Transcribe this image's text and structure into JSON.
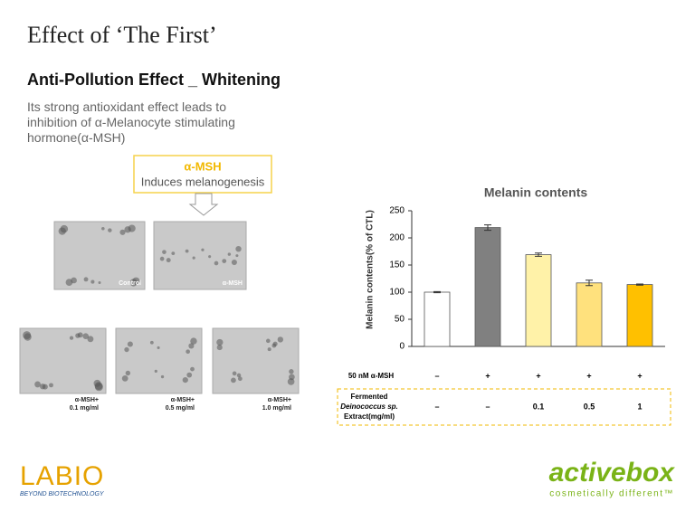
{
  "header": {
    "title": "Effect of ‘The First’",
    "subtitle": "Anti-Pollution Effect _ Whitening"
  },
  "description": [
    "Its strong antioxidant effect leads to",
    "inhibition of α-Melanocyte stimulating",
    "hormone(α-MSH)"
  ],
  "callout": {
    "title": "α-MSH",
    "text": "Induces melanogenesis"
  },
  "images": [
    {
      "label": [
        "Control"
      ]
    },
    {
      "label": [
        "α-MSH"
      ]
    },
    {
      "label": [
        "α-MSH+",
        "0.1 mg/ml"
      ]
    },
    {
      "label": [
        "α-MSH+",
        "0.5 mg/ml"
      ]
    },
    {
      "label": [
        "α-MSH+",
        "1.0 mg/ml"
      ]
    }
  ],
  "chart_data": {
    "type": "bar",
    "title": "Melanin contents",
    "y_label": "Melanin contents(% of CTL)",
    "categories": [
      null,
      null,
      null,
      null,
      null
    ],
    "values": [
      100,
      219,
      169,
      117,
      114
    ],
    "errors": [
      1,
      5,
      3,
      5,
      1
    ],
    "colors": [
      "#ffffff",
      "#808080",
      "#fff2a8",
      "#ffe17d",
      "#ffc000"
    ],
    "ylim": [
      0,
      250
    ],
    "yticks": [
      0,
      50,
      100,
      150,
      200,
      250
    ]
  },
  "conditions": [
    {
      "label": [
        "50 nM α-MSH"
      ],
      "values": [
        "–",
        "+",
        "+",
        "+",
        "+"
      ]
    },
    {
      "label": [
        "Fermented",
        "Deinococcus sp.",
        "Extract(mg/ml)"
      ],
      "values": [
        "–",
        "–",
        "0.1",
        "0.5",
        "1"
      ]
    }
  ],
  "logos": {
    "left": "LABIO",
    "left_tagline": "BEYOND BIOTECHNOLOGY",
    "right": "activebox",
    "right_tagline": "cosmetically different™"
  }
}
